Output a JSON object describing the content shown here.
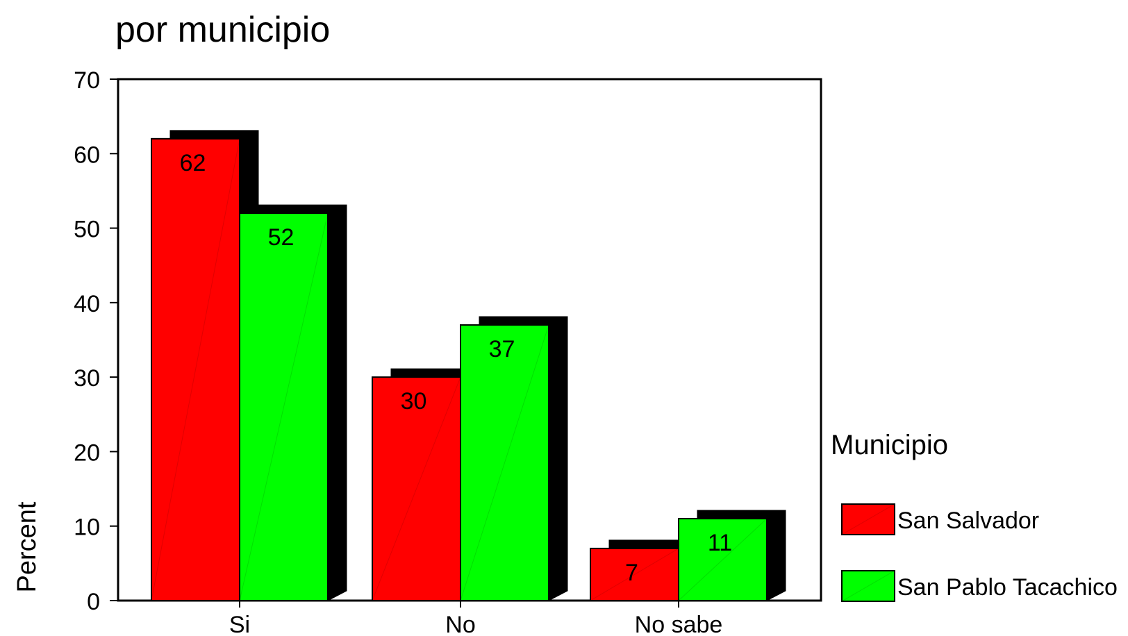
{
  "chart_data": {
    "type": "bar",
    "title": "por municipio",
    "xlabel": "",
    "ylabel": "Percent",
    "categories": [
      "Si",
      "No",
      "No sabe"
    ],
    "series": [
      {
        "name": "San Salvador",
        "values": [
          62,
          30,
          7
        ],
        "color": "#ff0000"
      },
      {
        "name": "San Pablo Tacachico",
        "values": [
          52,
          37,
          11
        ],
        "color": "#00ff00"
      }
    ],
    "data_labels": [
      [
        "62",
        "30",
        "7"
      ],
      [
        "52",
        "37",
        "11"
      ]
    ],
    "ylim": [
      0,
      70
    ],
    "yticks": [
      0,
      10,
      20,
      30,
      40,
      50,
      60,
      70
    ],
    "grid": false,
    "legend": {
      "title": "Municipio",
      "position": "right"
    },
    "shadow_color": "#000000"
  }
}
